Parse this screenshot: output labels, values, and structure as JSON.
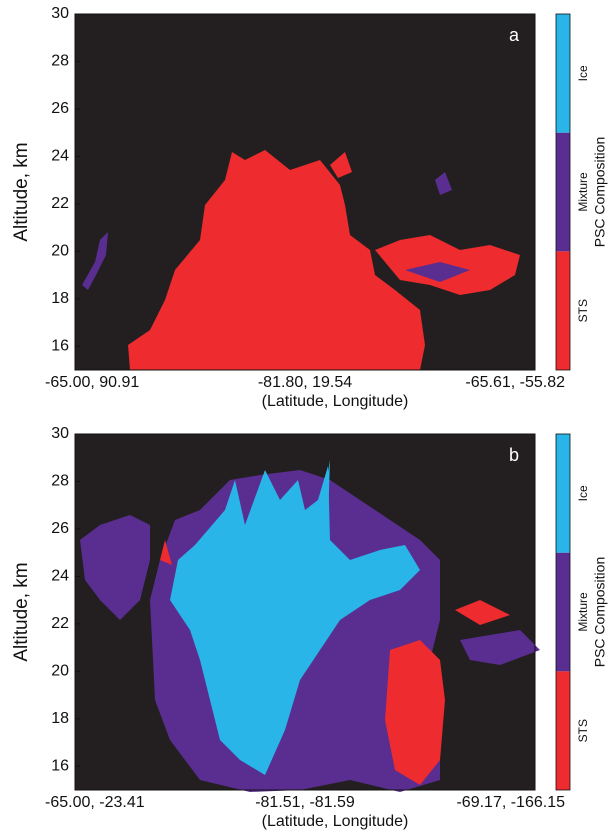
{
  "chart_data": [
    {
      "type": "heatmap",
      "panel_label": "a",
      "ylabel": "Altitude, km",
      "xlabel": "(Latitude, Longitude)",
      "categories": [
        "-65.00, 90.91",
        "-81.80, 19.54",
        "-65.61, -55.82"
      ],
      "ylim": [
        15,
        30
      ],
      "yticks": [
        16,
        18,
        20,
        22,
        24,
        26,
        28,
        30
      ],
      "colorbar_label": "PSC Composition",
      "classes": [
        "STS",
        "Mixture",
        "Ice"
      ],
      "colors": [
        "#ee2b2e",
        "#5a2d91",
        "#29b5e8"
      ],
      "background": "#231f20"
    },
    {
      "type": "heatmap",
      "panel_label": "b",
      "ylabel": "Altitude, km",
      "xlabel": "(Latitude, Longitude)",
      "categories": [
        "-65.00, -23.41",
        "-81.51, -81.59",
        "-69.17, -166.15"
      ],
      "ylim": [
        15,
        30
      ],
      "yticks": [
        16,
        18,
        20,
        22,
        24,
        26,
        28,
        30
      ],
      "colorbar_label": "PSC Composition",
      "classes": [
        "STS",
        "Mixture",
        "Ice"
      ],
      "colors": [
        "#ee2b2e",
        "#5a2d91",
        "#29b5e8"
      ],
      "background": "#231f20"
    }
  ]
}
